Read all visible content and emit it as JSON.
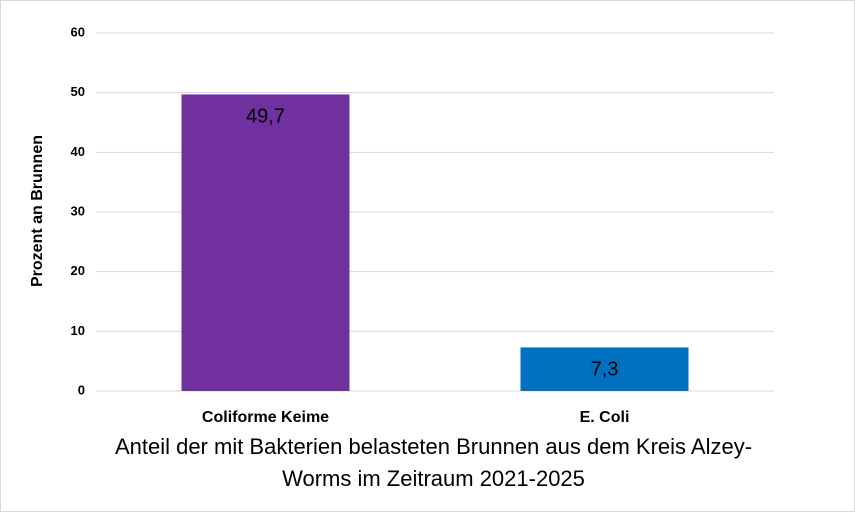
{
  "chart_data": {
    "type": "bar",
    "title": "Anteil der mit Bakterien belasteten Brunnen aus dem Kreis Alzey-Worms im Zeitraum 2021-2025",
    "y_label": "Prozent an Brunnen",
    "categories": [
      "Coliforme Keime",
      "E. Coli"
    ],
    "values": [
      49.7,
      7.3
    ],
    "value_labels": [
      "49,7",
      "7,3"
    ],
    "colors": [
      "#7030a0",
      "#0070c0"
    ],
    "ylim": [
      0,
      60
    ],
    "yticks": [
      0,
      10,
      20,
      30,
      40,
      50,
      60
    ],
    "grid": true
  }
}
